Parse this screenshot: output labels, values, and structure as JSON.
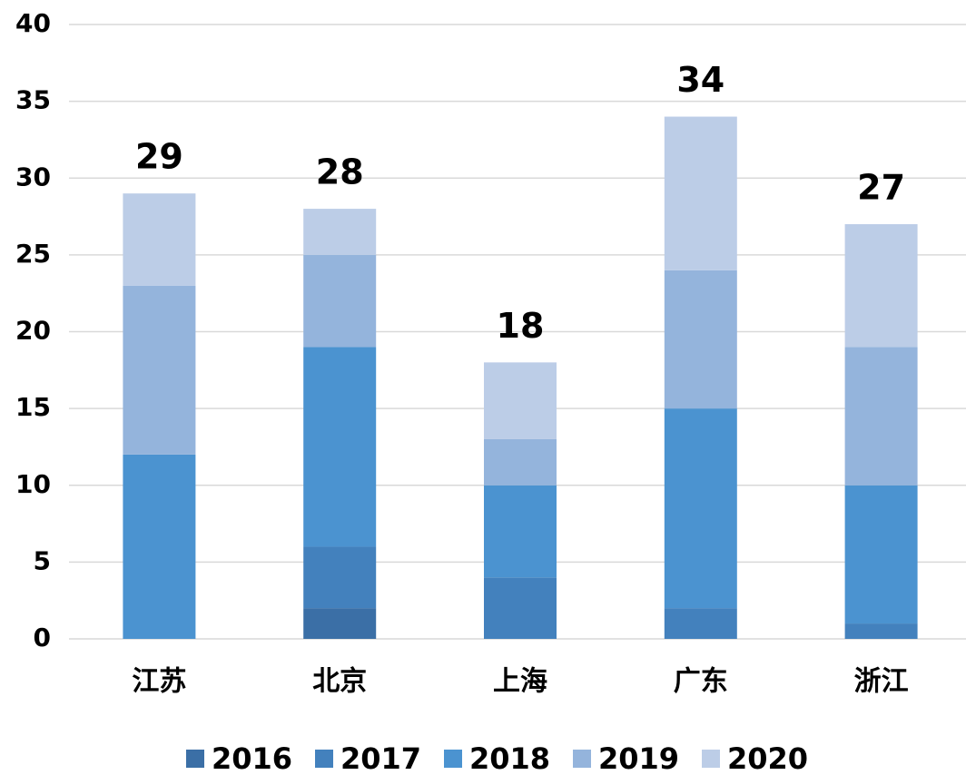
{
  "chart_data": {
    "type": "stacked_bar",
    "categories": [
      "江苏",
      "北京",
      "上海",
      "广东",
      "浙江"
    ],
    "series": [
      {
        "name": "2016",
        "color": "#3b6fa6",
        "values": [
          0,
          2,
          0,
          0,
          0
        ]
      },
      {
        "name": "2017",
        "color": "#4381bd",
        "values": [
          0,
          4,
          4,
          2,
          1
        ]
      },
      {
        "name": "2018",
        "color": "#4b93d0",
        "values": [
          12,
          13,
          6,
          13,
          9
        ]
      },
      {
        "name": "2019",
        "color": "#94b4dc",
        "values": [
          11,
          6,
          3,
          9,
          9
        ]
      },
      {
        "name": "2020",
        "color": "#bccde7",
        "values": [
          6,
          3,
          5,
          10,
          8
        ]
      }
    ],
    "totals": [
      29,
      28,
      18,
      34,
      27
    ],
    "ylim": [
      0,
      40
    ],
    "yticks": [
      0,
      5,
      10,
      15,
      20,
      25,
      30,
      35,
      40
    ],
    "grid": true,
    "legend": "bottom"
  }
}
